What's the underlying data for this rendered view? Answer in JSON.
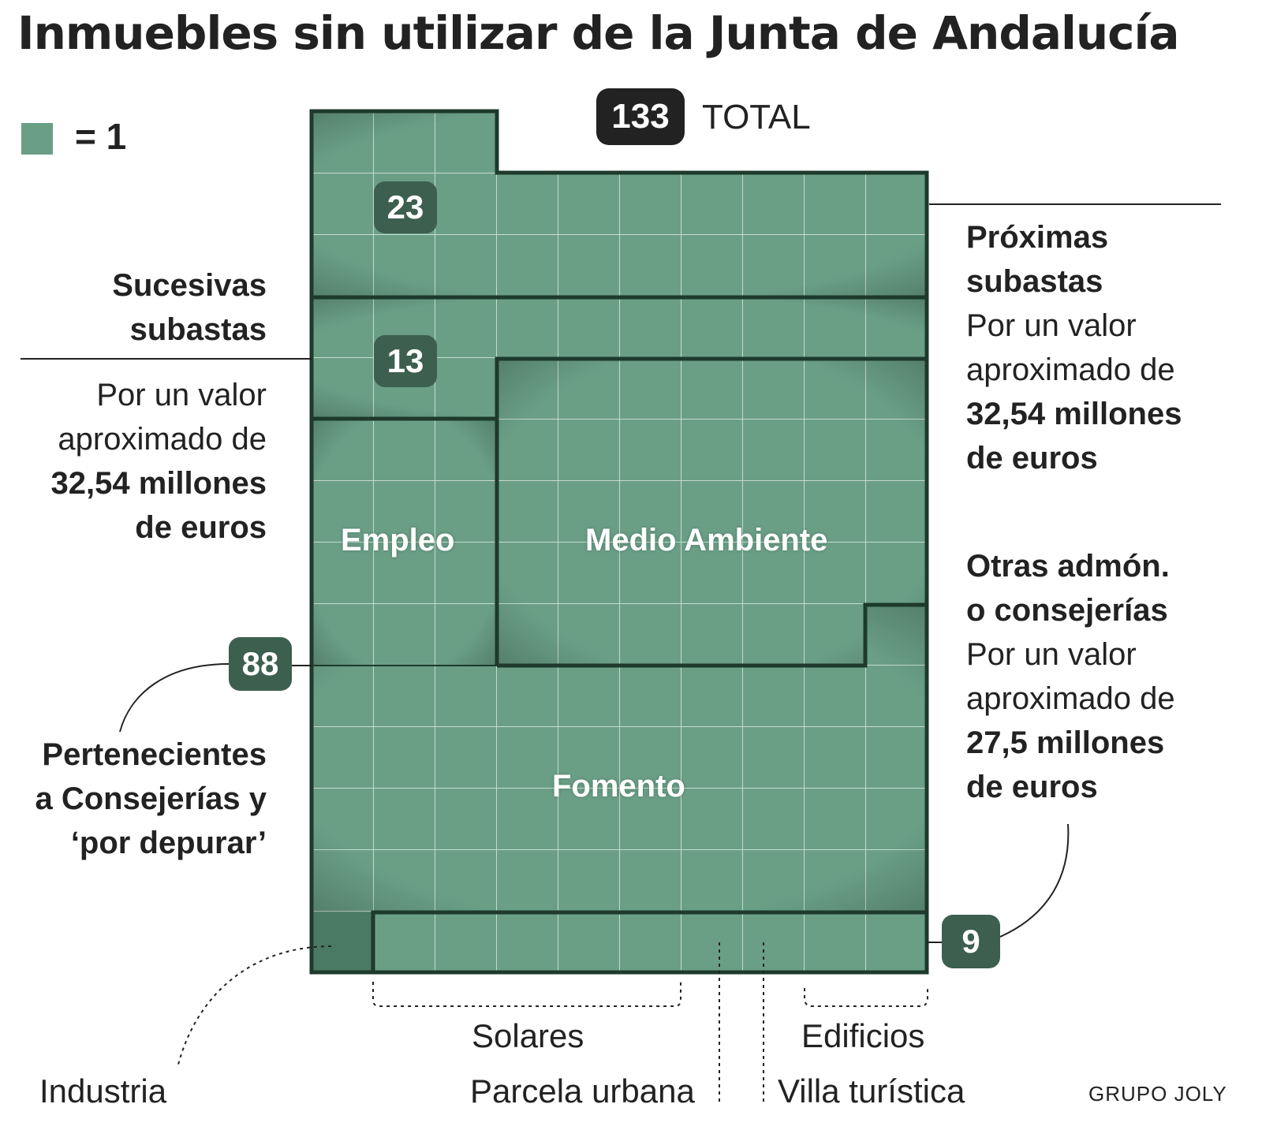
{
  "title": "Inmuebles sin utilizar de la Junta de Andalucía",
  "legend": {
    "label": "= 1",
    "color": "#6a9f86"
  },
  "total": {
    "value": "133",
    "label": "TOTAL"
  },
  "badges": {
    "top": "23",
    "middle": "13",
    "consejerias": "88",
    "otras": "9"
  },
  "regions": {
    "empleo": "Empleo",
    "medio_ambiente": "Medio Ambiente",
    "fomento": "Fomento"
  },
  "left_annotations": {
    "sucesivas": {
      "title_line1": "Sucesivas",
      "title_line2": "subastas",
      "text_line1": "Por un valor",
      "text_line2": "aproximado de",
      "value_line1": "32,54 millones",
      "value_line2": "de euros"
    },
    "pertenecientes": {
      "line1": "Pertenecientes",
      "line2": "a Consejerías y",
      "line3": "‘por depurar’"
    }
  },
  "right_annotations": {
    "proximas": {
      "title_line1": "Próximas",
      "title_line2": "subastas",
      "text_line1": "Por un valor",
      "text_line2": "aproximado de",
      "value_line1": "32,54 millones",
      "value_line2": "de euros"
    },
    "otras": {
      "title_line1": "Otras admón.",
      "title_line2": "o consejerías",
      "text_line1": "Por un valor",
      "text_line2": "aproximado de",
      "value_line1": "27,5 millones",
      "value_line2": "de euros"
    }
  },
  "bottom_labels": {
    "industria": "Industria",
    "solares": "Solares",
    "parcela": "Parcela urbana",
    "edificios": "Edificios",
    "villa": "Villa turística"
  },
  "credit": "GRUPO JOLY",
  "colors": {
    "fill": "#6a9f86",
    "border": "#1d3a2c",
    "badge": "#3d5f4f",
    "total_badge": "#222222"
  }
}
